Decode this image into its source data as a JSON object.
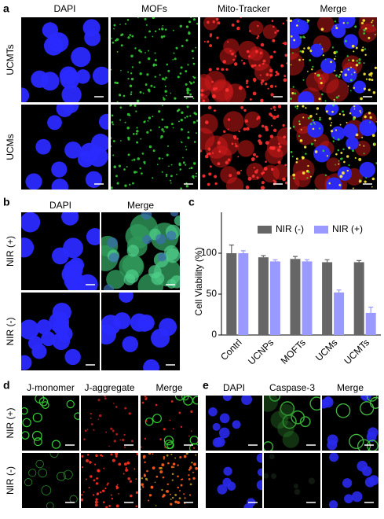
{
  "panels": {
    "a": {
      "label": "a",
      "columns": [
        "DAPI",
        "MOFs",
        "Mito-Tracker",
        "Merge"
      ],
      "rows": [
        "UCMTs",
        "UCMs"
      ]
    },
    "b": {
      "label": "b",
      "columns": [
        "DAPI",
        "Merge"
      ],
      "rows": [
        "NIR (+)",
        "NIR (-)"
      ]
    },
    "c": {
      "label": "c"
    },
    "d": {
      "label": "d",
      "columns": [
        "J-monomer",
        "J-aggregate",
        "Merge"
      ],
      "rows": [
        "NIR (+)",
        "NIR (-)"
      ]
    },
    "e": {
      "label": "e",
      "columns": [
        "DAPI",
        "Caspase-3",
        "Merge"
      ],
      "rows": [
        "NIR (+)",
        "NIR (-)"
      ]
    }
  },
  "chart_data": {
    "type": "bar",
    "y_label": "Cell Viability (%)",
    "categories": [
      "Contrl",
      "UCNPs",
      "MOFTs",
      "UCMs",
      "UCMTs"
    ],
    "series": [
      {
        "name": "NIR (-)",
        "color": "#666666",
        "values": [
          100,
          95,
          93,
          89,
          89
        ],
        "errors": [
          10,
          2,
          3,
          3,
          2
        ]
      },
      {
        "name": "NIR (+)",
        "color": "#9999ff",
        "values": [
          100,
          90,
          90,
          52,
          27
        ],
        "errors": [
          3,
          2,
          2,
          3,
          7
        ]
      }
    ],
    "ylim": [
      0,
      150
    ],
    "yticks": [
      0,
      50,
      100
    ]
  }
}
